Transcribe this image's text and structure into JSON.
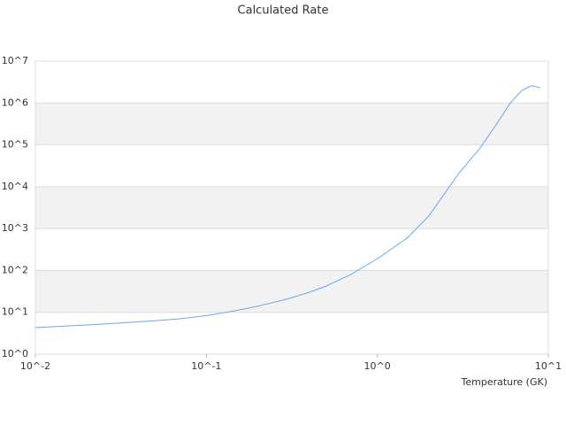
{
  "chart_data": {
    "type": "line",
    "title": "Calculated Rate",
    "x_label": "Temperature (GK)",
    "x": [
      0.01,
      0.015,
      0.02,
      0.03,
      0.05,
      0.07,
      0.1,
      0.15,
      0.2,
      0.3,
      0.4,
      0.5,
      0.7,
      1,
      1.5,
      2,
      3,
      4,
      5,
      6,
      7,
      8,
      9
    ],
    "values": [
      4.3,
      4.7,
      5.0,
      5.5,
      6.3,
      7.0,
      8.3,
      11,
      14,
      21,
      30,
      42,
      80,
      190,
      600,
      2000,
      21000,
      85000,
      320000,
      1000000,
      2000000,
      2600000,
      2300000
    ],
    "color": "#6aa8e8",
    "xscale": "log",
    "yscale": "log",
    "xlim": [
      0.01,
      10
    ],
    "ylim": [
      1,
      10000000
    ],
    "xticks": [
      {
        "value": 0.01,
        "label": "10^-2"
      },
      {
        "value": 0.1,
        "label": "10^-1"
      },
      {
        "value": 1,
        "label": "10^0"
      },
      {
        "value": 10,
        "label": "10^1"
      }
    ],
    "yticks": [
      {
        "value": 1,
        "label": "10^0"
      },
      {
        "value": 10,
        "label": "10^1"
      },
      {
        "value": 100,
        "label": "10^2"
      },
      {
        "value": 1000,
        "label": "10^3"
      },
      {
        "value": 10000,
        "label": "10^4"
      },
      {
        "value": 100000,
        "label": "10^5"
      },
      {
        "value": 1000000,
        "label": "10^6"
      },
      {
        "value": 10000000,
        "label": "10^7"
      }
    ],
    "grid": true,
    "alternating_bands": true
  }
}
